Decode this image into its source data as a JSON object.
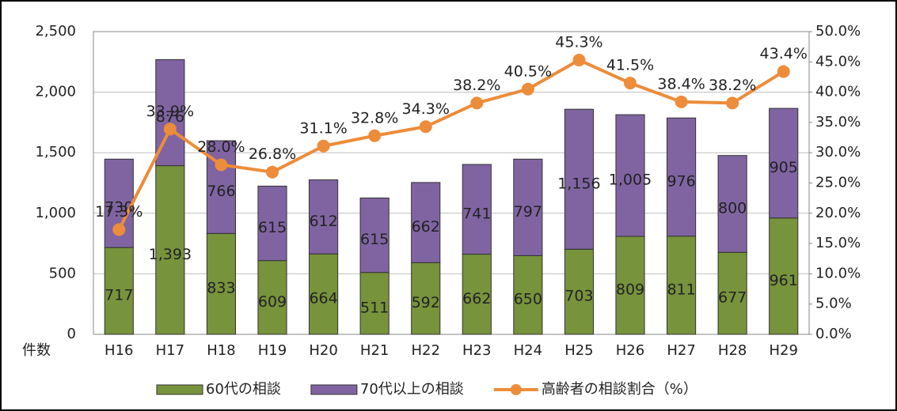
{
  "chart_data": {
    "type": "bar",
    "categories": [
      "H16",
      "H17",
      "H18",
      "H19",
      "H20",
      "H21",
      "H22",
      "H23",
      "H24",
      "H25",
      "H26",
      "H27",
      "H28",
      "H29"
    ],
    "y_axis_label": "件数",
    "series": [
      {
        "name": "60代の相談",
        "color": "#77933c",
        "values": [
          717,
          1393,
          833,
          609,
          664,
          511,
          592,
          662,
          650,
          703,
          809,
          811,
          677,
          961
        ],
        "value_labels": [
          "717",
          "1,393",
          "833",
          "609",
          "664",
          "511",
          "592",
          "662",
          "650",
          "703",
          "809",
          "811",
          "677",
          "961"
        ]
      },
      {
        "name": "70代以上の相談",
        "color": "#8064a2",
        "values": [
          730,
          876,
          766,
          615,
          612,
          615,
          662,
          741,
          797,
          1156,
          1005,
          976,
          800,
          905
        ],
        "value_labels": [
          "730",
          "876",
          "766",
          "615",
          "612",
          "615",
          "662",
          "741",
          "797",
          "1,156",
          "1,005",
          "976",
          "800",
          "905"
        ]
      },
      {
        "name": "高齢者の相談割合（%）",
        "color": "#ed8c3a",
        "type": "line",
        "axis": "y2",
        "values": [
          17.3,
          33.9,
          28.0,
          26.8,
          31.1,
          32.8,
          34.3,
          38.2,
          40.5,
          45.3,
          41.5,
          38.4,
          38.2,
          43.4
        ],
        "value_labels": [
          "17.3%",
          "33.9%",
          "28.0%",
          "26.8%",
          "31.1%",
          "32.8%",
          "34.3%",
          "38.2%",
          "40.5%",
          "45.3%",
          "41.5%",
          "38.4%",
          "38.2%",
          "43.4%"
        ]
      }
    ],
    "ylim": [
      0,
      2500
    ],
    "yticks": [
      0,
      500,
      {
        "value": 1000,
        "label": "1,000"
      },
      {
        "value": 1500,
        "label": "1,500"
      },
      {
        "value": 2000,
        "label": "2,000"
      },
      {
        "value": 2500,
        "label": "2,500"
      }
    ],
    "y2lim": [
      0,
      50
    ],
    "y2ticks": [
      {
        "value": 0,
        "label": "0.0%"
      },
      {
        "value": 5,
        "label": "5.0%"
      },
      {
        "value": 10,
        "label": "10.0%"
      },
      {
        "value": 15,
        "label": "15.0%"
      },
      {
        "value": 20,
        "label": "20.0%"
      },
      {
        "value": 25,
        "label": "25.0%"
      },
      {
        "value": 30,
        "label": "30.0%"
      },
      {
        "value": 35,
        "label": "35.0%"
      },
      {
        "value": 40,
        "label": "40.0%"
      },
      {
        "value": 45,
        "label": "45.0%"
      },
      {
        "value": 50,
        "label": "50.0%"
      }
    ],
    "grid": true,
    "legend": "bottom"
  }
}
